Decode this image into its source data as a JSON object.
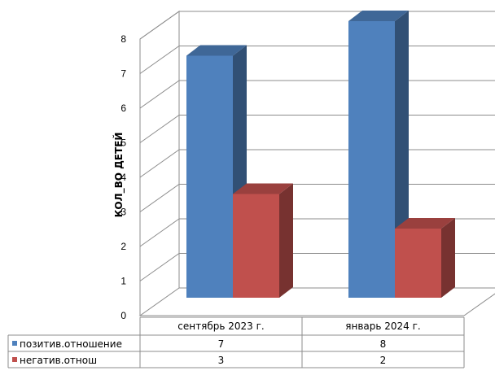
{
  "chart_data": {
    "type": "bar",
    "categories": [
      "сентябрь 2023 г.",
      "январь 2024 г."
    ],
    "series": [
      {
        "name": "позитив.отношение",
        "values": [
          7,
          8
        ],
        "color": "#4f81bd"
      },
      {
        "name": "негатив.отнош",
        "values": [
          3,
          2
        ],
        "color": "#c0504d"
      }
    ],
    "ylabel": "КОЛ_ВО ДЕТЕЙ",
    "ylim": [
      0,
      8
    ],
    "yticks": [
      0,
      1,
      2,
      3,
      4,
      5,
      6,
      7,
      8
    ],
    "grid": true,
    "legend": "data table",
    "style": "3d-clustered-column"
  }
}
